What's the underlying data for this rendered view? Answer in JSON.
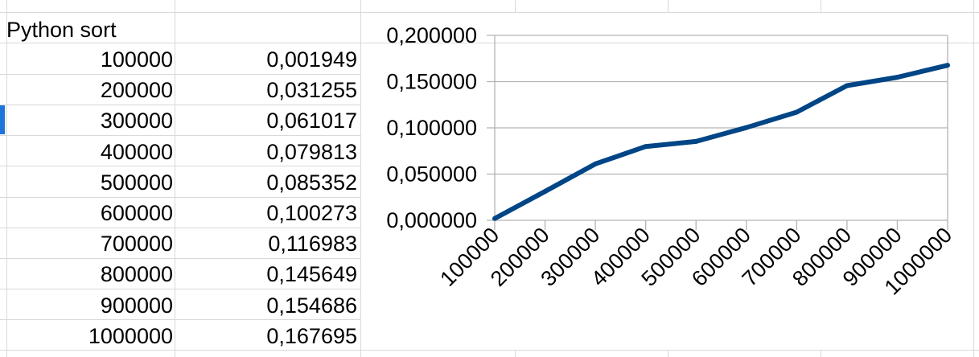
{
  "sheet": {
    "title": "Python sort",
    "rows": [
      {
        "n": "100000",
        "t": "0,001949"
      },
      {
        "n": "200000",
        "t": "0,031255"
      },
      {
        "n": "300000",
        "t": "0,061017"
      },
      {
        "n": "400000",
        "t": "0,079813"
      },
      {
        "n": "500000",
        "t": "0,085352"
      },
      {
        "n": "600000",
        "t": "0,100273"
      },
      {
        "n": "700000",
        "t": "0,116983"
      },
      {
        "n": "800000",
        "t": "0,145649"
      },
      {
        "n": "900000",
        "t": "0,154686"
      },
      {
        "n": "1000000",
        "t": "0,167695"
      }
    ]
  },
  "colors": {
    "line": "#004586",
    "grid": "#b3b3b3",
    "cell_grid": "#d9d9d9",
    "row_marker": "#1e74d8"
  },
  "chart_data": {
    "type": "line",
    "title": "",
    "xlabel": "",
    "ylabel": "",
    "categories": [
      "100000",
      "200000",
      "300000",
      "400000",
      "500000",
      "600000",
      "700000",
      "800000",
      "900000",
      "1000000"
    ],
    "series": [
      {
        "values": [
          0.001949,
          0.031255,
          0.061017,
          0.079813,
          0.085352,
          0.100273,
          0.116983,
          0.145649,
          0.154686,
          0.167695
        ]
      }
    ],
    "ylim": [
      0,
      0.2
    ],
    "yticks": [
      0,
      0.05,
      0.1,
      0.15,
      0.2
    ],
    "ytick_labels": [
      "0,000000",
      "0,050000",
      "0,100000",
      "0,150000",
      "0,200000"
    ],
    "grid": true,
    "legend": "none"
  }
}
